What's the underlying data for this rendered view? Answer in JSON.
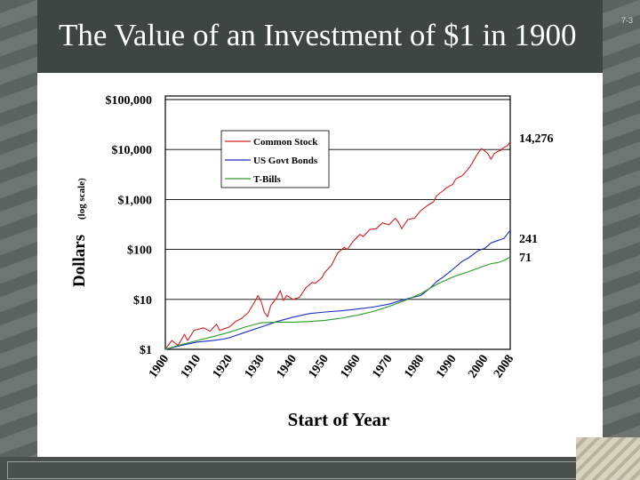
{
  "slide": {
    "title": "The Value of an Investment of $1 in 1900",
    "number": "7-3"
  },
  "chart_data": {
    "type": "line",
    "scale": "log",
    "title": "",
    "xlabel": "Start of Year",
    "ylabel": "Dollars",
    "ylabel_note": "(log scale)",
    "xlim": [
      1900,
      2008
    ],
    "ylim": [
      1,
      100000
    ],
    "y_ticks": [
      1,
      10,
      100,
      1000,
      10000,
      100000
    ],
    "y_tick_labels": [
      "$1",
      "$10",
      "$100",
      "$1,000",
      "$10,000",
      "$100,000"
    ],
    "x_ticks": [
      1900,
      1910,
      1920,
      1930,
      1940,
      1950,
      1960,
      1970,
      1980,
      1990,
      2000,
      2008
    ],
    "x_tick_labels": [
      "1900",
      "1910",
      "1920",
      "1930",
      "1940",
      "1950",
      "1960",
      "1970",
      "1980",
      "1990",
      "2000",
      "2008"
    ],
    "legend": [
      "Common Stock",
      "US Govt Bonds",
      "T-Bills"
    ],
    "legend_position": "top-center",
    "end_labels": [
      "14,276",
      "241",
      "71"
    ],
    "series": [
      {
        "name": "Common Stock",
        "color": "#d42020",
        "points": [
          [
            1900,
            1
          ],
          [
            1902,
            1.5
          ],
          [
            1904,
            1.2
          ],
          [
            1906,
            2
          ],
          [
            1907,
            1.5
          ],
          [
            1909,
            2.4
          ],
          [
            1912,
            2.7
          ],
          [
            1914,
            2.3
          ],
          [
            1916,
            3.2
          ],
          [
            1917,
            2.4
          ],
          [
            1920,
            2.8
          ],
          [
            1922,
            3.6
          ],
          [
            1924,
            4.2
          ],
          [
            1926,
            5.5
          ],
          [
            1928,
            9
          ],
          [
            1929,
            12
          ],
          [
            1930,
            9
          ],
          [
            1931,
            5.5
          ],
          [
            1932,
            4.5
          ],
          [
            1933,
            7.5
          ],
          [
            1935,
            11
          ],
          [
            1936,
            15
          ],
          [
            1937,
            9.5
          ],
          [
            1938,
            12
          ],
          [
            1940,
            10
          ],
          [
            1942,
            11
          ],
          [
            1944,
            17
          ],
          [
            1946,
            22
          ],
          [
            1947,
            21
          ],
          [
            1949,
            27
          ],
          [
            1950,
            35
          ],
          [
            1952,
            48
          ],
          [
            1954,
            85
          ],
          [
            1956,
            110
          ],
          [
            1957,
            100
          ],
          [
            1959,
            150
          ],
          [
            1961,
            200
          ],
          [
            1962,
            180
          ],
          [
            1964,
            250
          ],
          [
            1966,
            260
          ],
          [
            1968,
            340
          ],
          [
            1970,
            310
          ],
          [
            1972,
            420
          ],
          [
            1973,
            350
          ],
          [
            1974,
            260
          ],
          [
            1976,
            400
          ],
          [
            1978,
            420
          ],
          [
            1980,
            600
          ],
          [
            1982,
            750
          ],
          [
            1984,
            900
          ],
          [
            1985,
            1200
          ],
          [
            1987,
            1500
          ],
          [
            1988,
            1700
          ],
          [
            1990,
            2000
          ],
          [
            1991,
            2600
          ],
          [
            1993,
            3000
          ],
          [
            1995,
            4200
          ],
          [
            1996,
            5200
          ],
          [
            1997,
            6800
          ],
          [
            1998,
            8600
          ],
          [
            1999,
            10400
          ],
          [
            2000,
            9400
          ],
          [
            2001,
            8200
          ],
          [
            2002,
            6400
          ],
          [
            2003,
            8200
          ],
          [
            2004,
            9100
          ],
          [
            2005,
            9600
          ],
          [
            2006,
            11000
          ],
          [
            2007,
            11700
          ],
          [
            2008,
            14276
          ]
        ]
      },
      {
        "name": "US Govt Bonds",
        "color": "#1a2ec4",
        "points": [
          [
            1900,
            1
          ],
          [
            1905,
            1.2
          ],
          [
            1910,
            1.4
          ],
          [
            1915,
            1.5
          ],
          [
            1918,
            1.6
          ],
          [
            1920,
            1.7
          ],
          [
            1925,
            2.2
          ],
          [
            1930,
            2.8
          ],
          [
            1935,
            3.6
          ],
          [
            1940,
            4.4
          ],
          [
            1945,
            5.2
          ],
          [
            1950,
            5.6
          ],
          [
            1955,
            5.9
          ],
          [
            1960,
            6.4
          ],
          [
            1965,
            7
          ],
          [
            1970,
            8
          ],
          [
            1975,
            10
          ],
          [
            1980,
            12
          ],
          [
            1983,
            17
          ],
          [
            1985,
            23
          ],
          [
            1987,
            28
          ],
          [
            1990,
            40
          ],
          [
            1993,
            58
          ],
          [
            1995,
            68
          ],
          [
            1998,
            95
          ],
          [
            2000,
            105
          ],
          [
            2002,
            135
          ],
          [
            2004,
            150
          ],
          [
            2006,
            165
          ],
          [
            2008,
            241
          ]
        ]
      },
      {
        "name": "T-Bills",
        "color": "#2a9a2a",
        "points": [
          [
            1900,
            1
          ],
          [
            1905,
            1.25
          ],
          [
            1910,
            1.5
          ],
          [
            1915,
            1.8
          ],
          [
            1920,
            2.2
          ],
          [
            1925,
            2.8
          ],
          [
            1930,
            3.4
          ],
          [
            1935,
            3.5
          ],
          [
            1940,
            3.5
          ],
          [
            1945,
            3.6
          ],
          [
            1950,
            3.8
          ],
          [
            1955,
            4.2
          ],
          [
            1960,
            4.8
          ],
          [
            1965,
            5.7
          ],
          [
            1970,
            7.2
          ],
          [
            1975,
            9.5
          ],
          [
            1980,
            13
          ],
          [
            1985,
            20
          ],
          [
            1990,
            28
          ],
          [
            1995,
            36
          ],
          [
            2000,
            47
          ],
          [
            2002,
            52
          ],
          [
            2004,
            54
          ],
          [
            2006,
            60
          ],
          [
            2008,
            71
          ]
        ]
      }
    ]
  }
}
